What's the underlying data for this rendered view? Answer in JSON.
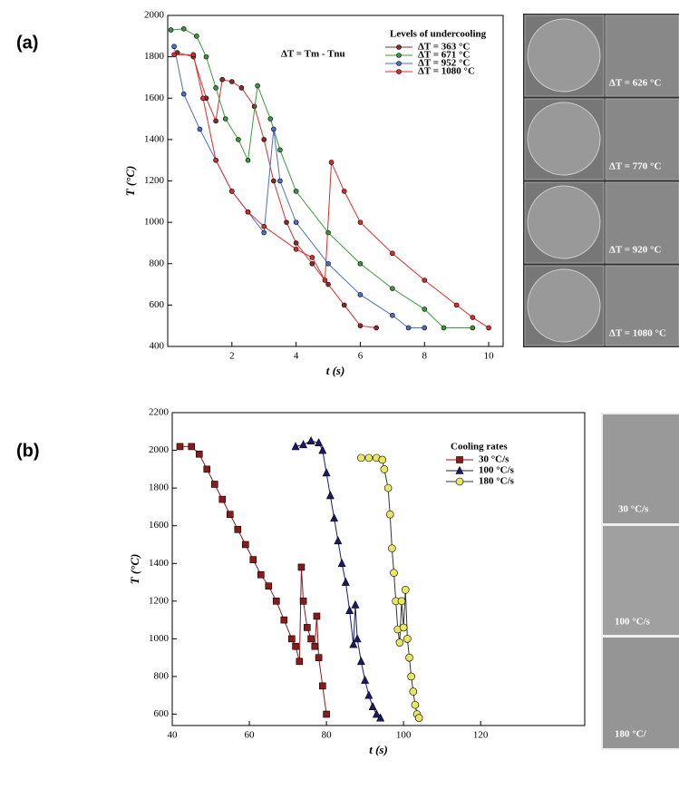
{
  "figure": {
    "panel_labels": [
      "(a)",
      "(b)"
    ],
    "micrographs_a": [
      "ΔT = 626 °C",
      "ΔT = 770 °C",
      "ΔT = 920 °C",
      "ΔT = 1080 °C"
    ],
    "micrographs_b": [
      "30 °C/s",
      "100 °C/s",
      "180 °C/"
    ]
  },
  "chart_data": [
    {
      "type": "line",
      "x_label": "t (s)",
      "y_label": "T (°C)",
      "annotation": "ΔT =  Tm - Tnu",
      "legend_title": "Levels of undercooling",
      "legend": "upper right",
      "marker": "circle",
      "xlim": [
        0,
        10.45
      ],
      "ylim": [
        400,
        2000
      ],
      "xticks": [
        2,
        4,
        6,
        8,
        10
      ],
      "yticks": [
        400,
        600,
        800,
        1000,
        1200,
        1400,
        1600,
        1800,
        2000
      ],
      "series": [
        {
          "name": "ΔT = 363 °C",
          "color": "#8b2a2a",
          "x": [
            0.3,
            0.8,
            1.2,
            1.5,
            1.7,
            2.0,
            2.3,
            2.7,
            3.0,
            3.3,
            3.7,
            4.0,
            4.5,
            5.0,
            5.5,
            6.0,
            6.5
          ],
          "values": [
            1820,
            1800,
            1600,
            1490,
            1690,
            1680,
            1650,
            1560,
            1400,
            1200,
            1000,
            900,
            800,
            700,
            600,
            500,
            490
          ]
        },
        {
          "name": "ΔT = 671 °C",
          "color": "#3a9a3a",
          "x": [
            0.1,
            0.5,
            0.9,
            1.2,
            1.5,
            1.8,
            2.2,
            2.5,
            2.8,
            3.2,
            3.5,
            4.0,
            5.0,
            6.0,
            7.0,
            8.0,
            8.6,
            9.5
          ],
          "values": [
            1930,
            1935,
            1900,
            1800,
            1650,
            1500,
            1400,
            1300,
            1660,
            1500,
            1350,
            1150,
            950,
            800,
            680,
            580,
            490,
            490
          ]
        },
        {
          "name": "ΔT = 952 °C",
          "color": "#4a6fd0",
          "x": [
            0.2,
            0.5,
            1.0,
            1.5,
            2.0,
            2.5,
            3.0,
            3.3,
            3.5,
            4.0,
            5.0,
            6.0,
            7.0,
            7.5,
            8.0
          ],
          "values": [
            1850,
            1620,
            1450,
            1300,
            1150,
            1050,
            950,
            1450,
            1200,
            1000,
            800,
            650,
            550,
            490,
            490
          ]
        },
        {
          "name": "ΔT = 1080 °C",
          "color": "#e02a2a",
          "x": [
            0.2,
            0.8,
            1.1,
            1.5,
            2.0,
            2.5,
            3.0,
            4.0,
            4.5,
            4.9,
            5.1,
            5.5,
            6.0,
            7.0,
            8.0,
            9.0,
            9.5,
            10.0
          ],
          "values": [
            1810,
            1810,
            1600,
            1300,
            1150,
            1050,
            980,
            870,
            830,
            720,
            1290,
            1150,
            1000,
            850,
            720,
            600,
            540,
            490
          ]
        }
      ]
    },
    {
      "type": "line",
      "x_label": "t (s)",
      "y_label": "T (°C)",
      "legend_title": "Cooling rates",
      "legend": "upper right",
      "xlim": [
        40,
        147
      ],
      "ylim": [
        540,
        2200
      ],
      "xticks": [
        40,
        60,
        80,
        100,
        120
      ],
      "yticks": [
        600,
        800,
        1000,
        1200,
        1400,
        1600,
        1800,
        2000,
        2200
      ],
      "series": [
        {
          "name": "30 °C/s",
          "color": "#8b1a1a",
          "marker": "square",
          "x": [
            42,
            45,
            47,
            49,
            51,
            53,
            55,
            57,
            59,
            61,
            63,
            65,
            67,
            69,
            71,
            72,
            73,
            73.5,
            74,
            75,
            76,
            77,
            77.5,
            78,
            79,
            80
          ],
          "values": [
            2020,
            2020,
            1980,
            1900,
            1820,
            1740,
            1660,
            1580,
            1500,
            1420,
            1340,
            1280,
            1200,
            1100,
            1000,
            960,
            880,
            1380,
            1200,
            1060,
            1000,
            960,
            1120,
            900,
            750,
            600
          ]
        },
        {
          "name": "100 °C/s",
          "color": "#1a1a6a",
          "marker": "triangle",
          "x": [
            72,
            74,
            76,
            78,
            79,
            80,
            81,
            82,
            83,
            84,
            85,
            86,
            87,
            87.5,
            88,
            89,
            90,
            91,
            92,
            93,
            94
          ],
          "values": [
            2020,
            2030,
            2050,
            2040,
            2000,
            1880,
            1760,
            1640,
            1520,
            1400,
            1300,
            1150,
            970,
            1180,
            1000,
            880,
            780,
            700,
            640,
            600,
            580
          ]
        },
        {
          "name": "180 °C/s",
          "color": "#e8e860",
          "marker": "circle",
          "x": [
            89,
            91,
            93,
            94.5,
            95,
            96,
            96.5,
            97,
            97.5,
            98,
            98.5,
            99,
            99.5,
            100,
            100.5,
            101,
            101.5,
            102,
            102.5,
            103,
            103.5,
            104
          ],
          "values": [
            1960,
            1960,
            1960,
            1950,
            1900,
            1800,
            1660,
            1480,
            1350,
            1200,
            1050,
            980,
            1200,
            1060,
            1260,
            1000,
            900,
            800,
            720,
            650,
            600,
            580
          ]
        }
      ]
    }
  ]
}
